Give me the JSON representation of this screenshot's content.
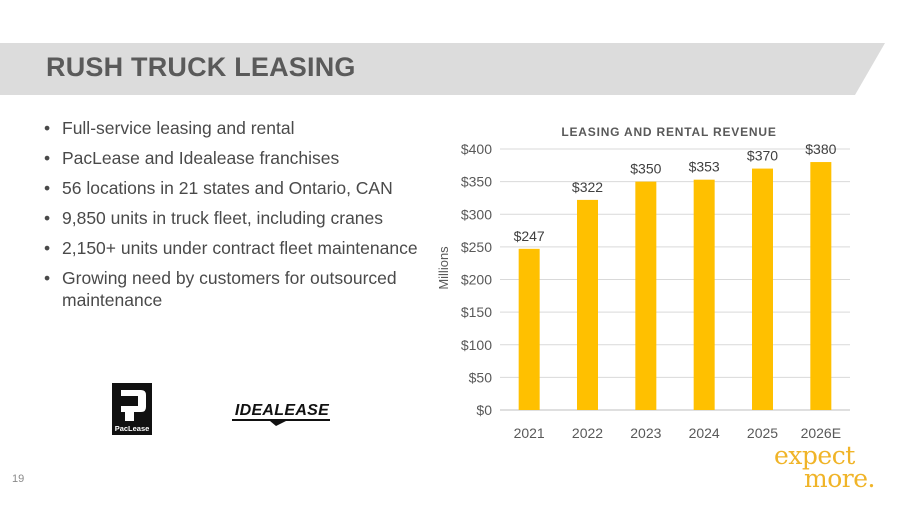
{
  "page": {
    "title": "RUSH TRUCK LEASING",
    "page_number": "19",
    "accent_color": "#f0b428",
    "band_color": "#dcdcdc"
  },
  "bullets": [
    {
      "text": "Full-service leasing and rental"
    },
    {
      "text": "PacLease and Idealease franchises"
    },
    {
      "text": "56 locations in 21 states and Ontario, CAN"
    },
    {
      "text": "9,850 units in truck fleet, including cranes"
    },
    {
      "text": "2,150+ units under contract fleet maintenance"
    },
    {
      "text": "Growing need by customers for outsourced maintenance"
    }
  ],
  "logos": {
    "paclease": {
      "text": "PacLease",
      "icon": "paclease-logo"
    },
    "idealease": {
      "text": "IDEALEASE",
      "icon": "idealease-logo"
    }
  },
  "tagline": {
    "line1": "expect",
    "line2": "more."
  },
  "chart_data": {
    "type": "bar",
    "title": "LEASING AND RENTAL REVENUE",
    "xlabel": "",
    "ylabel": "Millions",
    "categories": [
      "2021",
      "2022",
      "2023",
      "2024",
      "2025",
      "2026E"
    ],
    "values": [
      247,
      322,
      350,
      353,
      370,
      380
    ],
    "data_labels": [
      "$247",
      "$322",
      "$350",
      "$353",
      "$370",
      "$380"
    ],
    "ylim": [
      0,
      400
    ],
    "yticks": [
      0,
      50,
      100,
      150,
      200,
      250,
      300,
      350,
      400
    ],
    "ytick_labels": [
      "$0",
      "$50",
      "$100",
      "$150",
      "$200",
      "$250",
      "$300",
      "$350",
      "$400"
    ],
    "grid": true,
    "legend": "none",
    "bar_color": "#ffc000"
  }
}
